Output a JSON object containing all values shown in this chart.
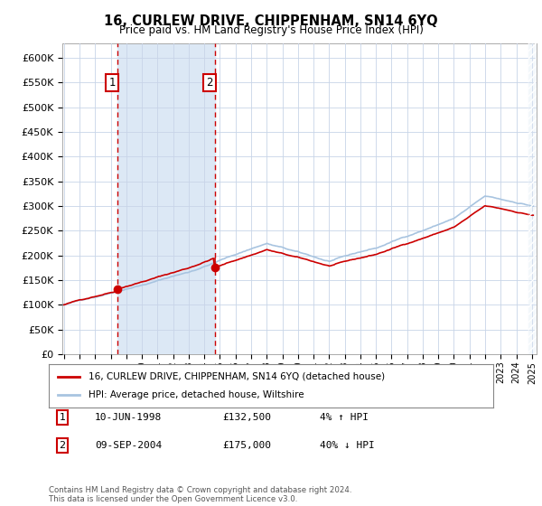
{
  "title": "16, CURLEW DRIVE, CHIPPENHAM, SN14 6YQ",
  "subtitle": "Price paid vs. HM Land Registry's House Price Index (HPI)",
  "yticks": [
    0,
    50000,
    100000,
    150000,
    200000,
    250000,
    300000,
    350000,
    400000,
    450000,
    500000,
    550000,
    600000
  ],
  "ytick_labels": [
    "£0",
    "£50K",
    "£100K",
    "£150K",
    "£200K",
    "£250K",
    "£300K",
    "£350K",
    "£400K",
    "£450K",
    "£500K",
    "£550K",
    "£600K"
  ],
  "hpi_color": "#a8c4e0",
  "property_color": "#cc0000",
  "bg_color": "#ffffff",
  "grid_color": "#c8d4e8",
  "purchase1_date": 1998.44,
  "purchase1_price": 132500,
  "purchase2_date": 2004.69,
  "purchase2_price": 175000,
  "shade_color": "#dce8f5",
  "legend_entries": [
    "16, CURLEW DRIVE, CHIPPENHAM, SN14 6YQ (detached house)",
    "HPI: Average price, detached house, Wiltshire"
  ],
  "footnote": "Contains HM Land Registry data © Crown copyright and database right 2024.\nThis data is licensed under the Open Government Licence v3.0.",
  "table_rows": [
    [
      "1",
      "10-JUN-1998",
      "£132,500",
      "4% ↑ HPI"
    ],
    [
      "2",
      "09-SEP-2004",
      "£175,000",
      "40% ↓ HPI"
    ]
  ]
}
